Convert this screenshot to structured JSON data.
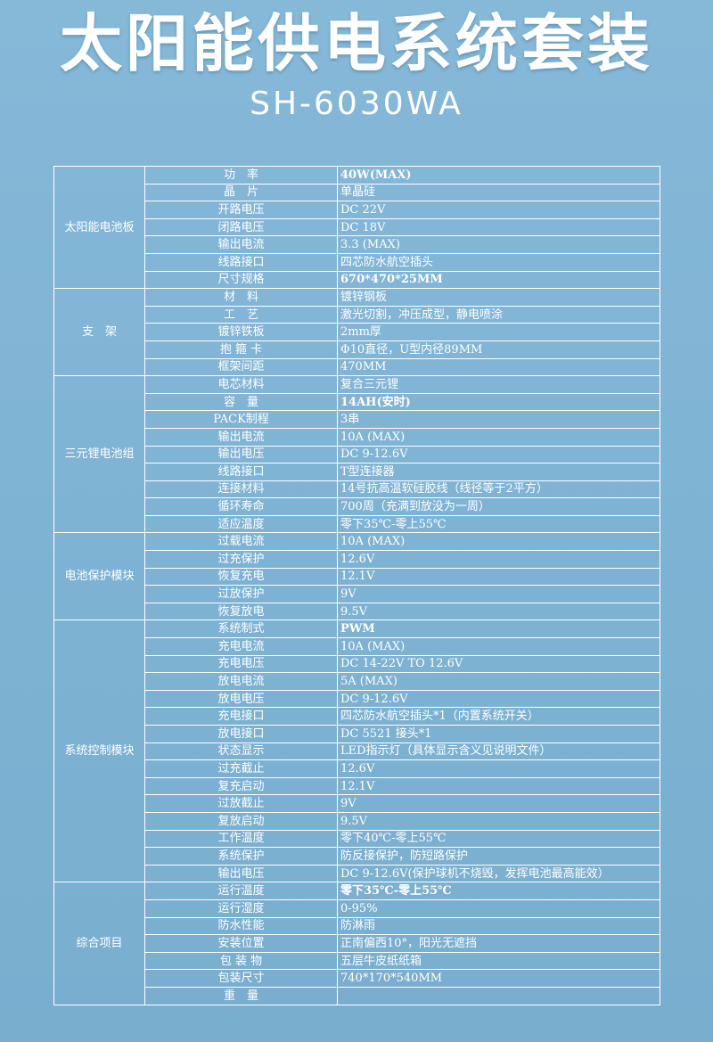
{
  "title": "太阳能供电系统套装",
  "model": "SH-6030WA",
  "groups": [
    {
      "name": "太阳能电池板",
      "rows": [
        {
          "label": "功　率",
          "value": "40W(MAX)",
          "bold": true
        },
        {
          "label": "晶　片",
          "value": "单晶硅"
        },
        {
          "label": "开路电压",
          "value": "DC 22V"
        },
        {
          "label": "闭路电压",
          "value": "DC 18V"
        },
        {
          "label": "输出电流",
          "value": "3.3 (MAX)"
        },
        {
          "label": "线路接口",
          "value": "四芯防水航空插头"
        },
        {
          "label": "尺寸规格",
          "value": "670*470*25MM",
          "bold": true
        }
      ]
    },
    {
      "name": "支　架",
      "rows": [
        {
          "label": "材　料",
          "value": "镀锌钢板"
        },
        {
          "label": "工　艺",
          "value": "激光切割，冲压成型，静电喷涂"
        },
        {
          "label": "镀锌铁板",
          "value": "2mm厚"
        },
        {
          "label": "抱 箍 卡",
          "value": "Φ10直径，U型内径89MM"
        },
        {
          "label": "框架间距",
          "value": "470MM"
        }
      ]
    },
    {
      "name": "三元锂电池组",
      "rows": [
        {
          "label": "电芯材料",
          "value": "复合三元锂"
        },
        {
          "label": "容　量",
          "value": "14AH(安时)",
          "bold": true
        },
        {
          "label": "PACK制程",
          "value": "3串"
        },
        {
          "label": "输出电流",
          "value": "10A (MAX)"
        },
        {
          "label": "输出电压",
          "value": "DC 9-12.6V"
        },
        {
          "label": "线路接口",
          "value": "T型连接器"
        },
        {
          "label": "连接材料",
          "value": "14号抗高温软硅胶线（线径等于2平方）"
        },
        {
          "label": "循环寿命",
          "value": "700周（充满到放没为一周）"
        },
        {
          "label": "适应温度",
          "value": "零下35℃-零上55℃"
        }
      ]
    },
    {
      "name": "电池保护模块",
      "rows": [
        {
          "label": "过载电流",
          "value": "10A (MAX)"
        },
        {
          "label": "过充保护",
          "value": "12.6V"
        },
        {
          "label": "恢复充电",
          "value": "12.1V"
        },
        {
          "label": "过放保护",
          "value": "9V"
        },
        {
          "label": "恢复放电",
          "value": "9.5V"
        }
      ]
    },
    {
      "name": "系统控制模块",
      "rows": [
        {
          "label": "系统制式",
          "value": "PWM",
          "bold": true
        },
        {
          "label": "充电电流",
          "value": "10A (MAX)"
        },
        {
          "label": "充电电压",
          "value": "DC 14-22V TO 12.6V"
        },
        {
          "label": "放电电流",
          "value": "5A (MAX)"
        },
        {
          "label": "放电电压",
          "value": "DC 9-12.6V"
        },
        {
          "label": "充电接口",
          "value": "四芯防水航空插头*1（内置系统开关）"
        },
        {
          "label": "放电接口",
          "value": "DC 5521 接头*1"
        },
        {
          "label": "状态显示",
          "value": "LED指示灯（具体显示含义见说明文件）"
        },
        {
          "label": "过充截止",
          "value": "12.6V"
        },
        {
          "label": "复充启动",
          "value": "12.1V"
        },
        {
          "label": "过放截止",
          "value": "9V"
        },
        {
          "label": "复放启动",
          "value": "9.5V"
        },
        {
          "label": "工作温度",
          "value": "零下40℃-零上55℃"
        },
        {
          "label": "系统保护",
          "value": "防反接保护，防短路保护"
        },
        {
          "label": "输出电压",
          "value": "DC 9-12.6V(保护球机不烧毁，发挥电池最高能效）"
        }
      ]
    },
    {
      "name": "综合项目",
      "rows": [
        {
          "label": "运行温度",
          "value": "零下35℃-零上55℃",
          "bold": true
        },
        {
          "label": "运行湿度",
          "value": "0-95%"
        },
        {
          "label": "防水性能",
          "value": "防淋雨"
        },
        {
          "label": "安装位置",
          "value": "正南偏西10°，阳光无遮挡"
        },
        {
          "label": "包 装 物",
          "value": "五层牛皮纸纸箱"
        },
        {
          "label": "包装尺寸",
          "value": "740*170*540MM"
        },
        {
          "label": "重　量",
          "value": ""
        }
      ]
    }
  ]
}
